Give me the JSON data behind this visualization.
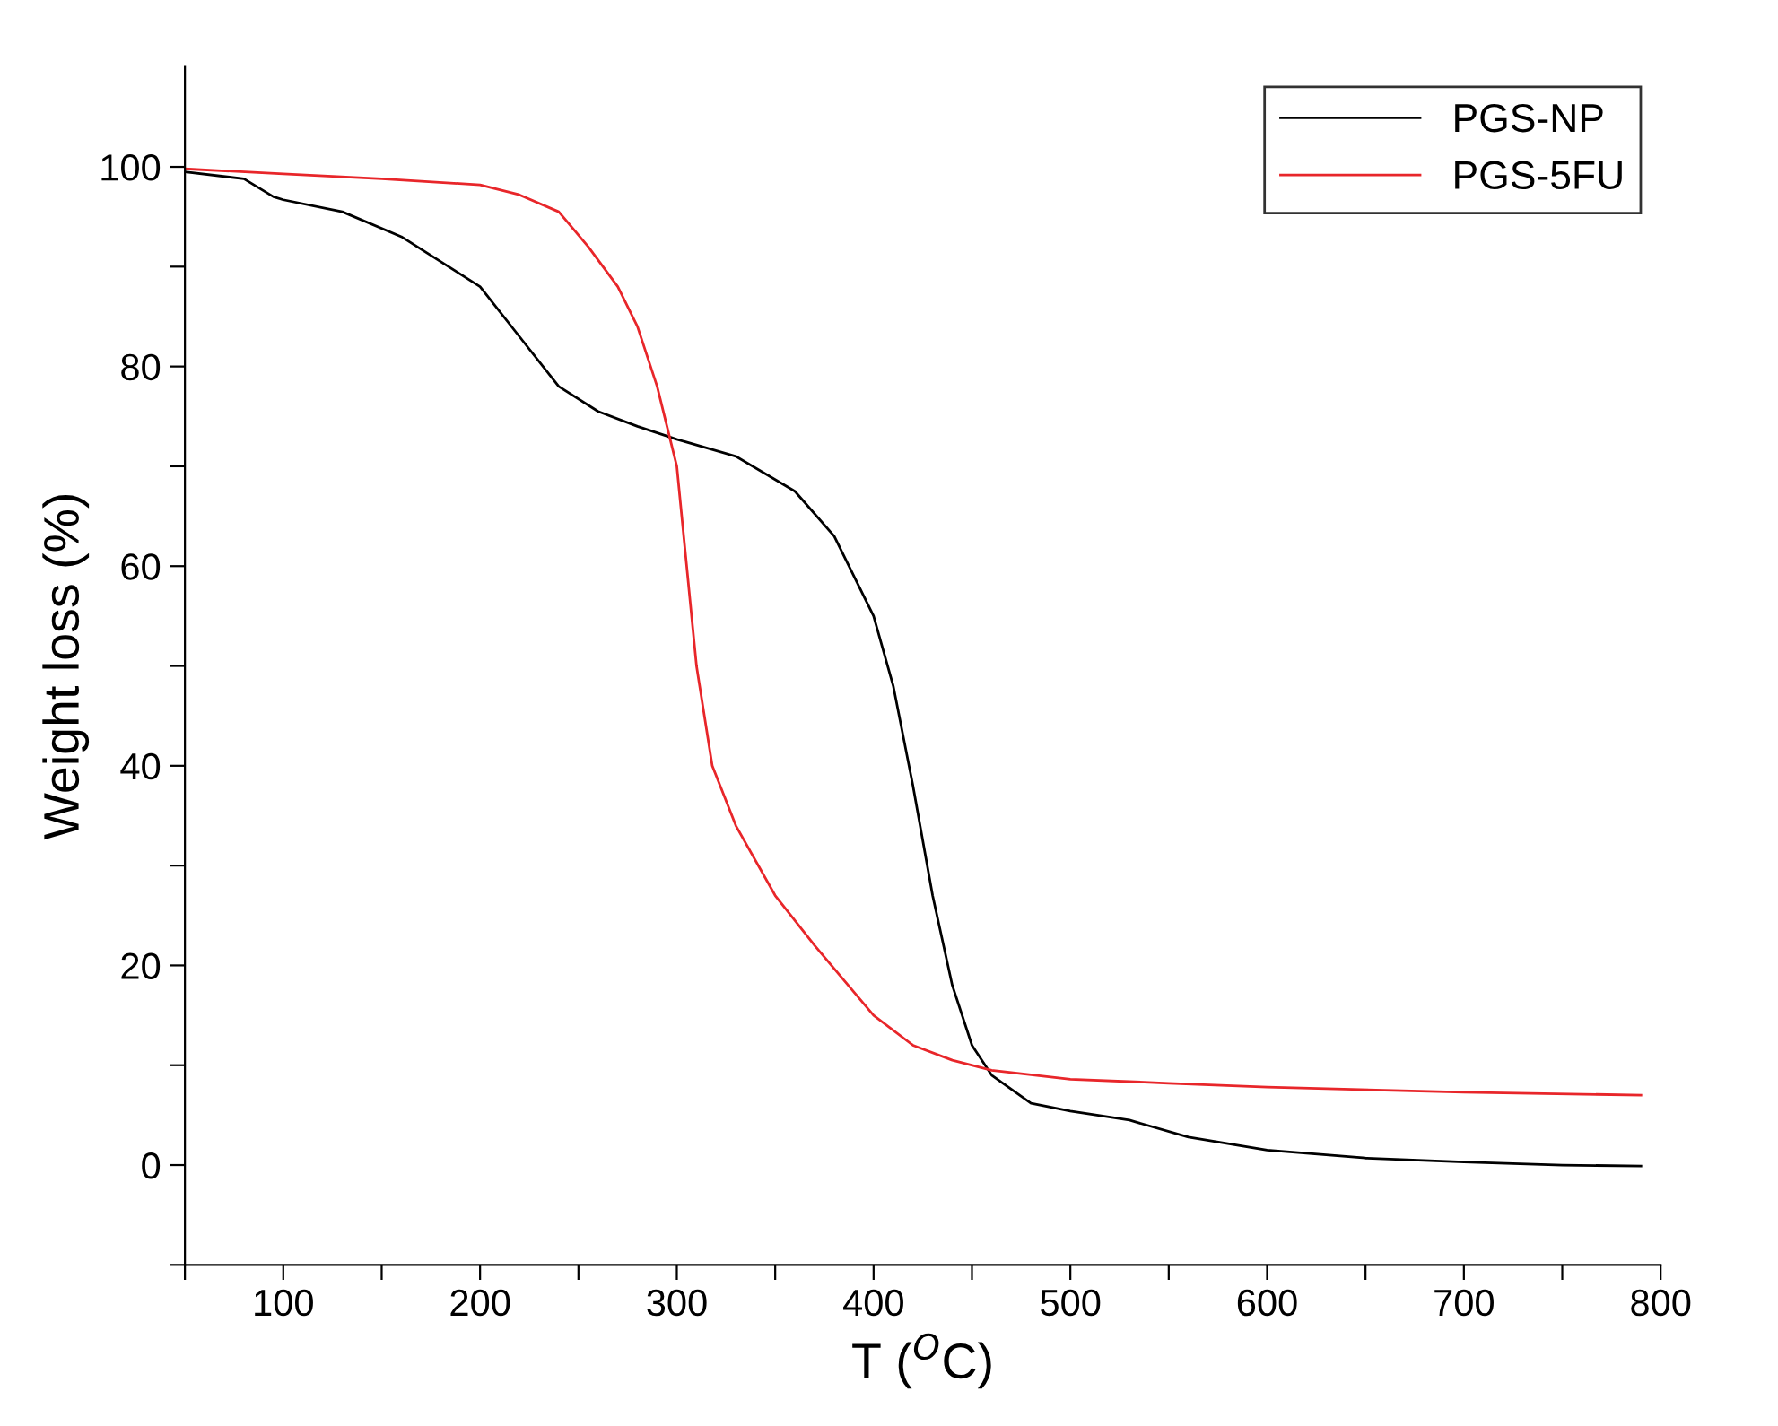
{
  "chart_data": {
    "type": "line",
    "xlabel": "T ($^{O}$C)",
    "ylabel": "Weight loss (%)",
    "xlim": [
      50,
      800
    ],
    "ylim": [
      -10,
      110
    ],
    "xticks": [
      {
        "value": 50,
        "label": null
      },
      100,
      {
        "value": 150,
        "label": null
      },
      200,
      {
        "value": 250,
        "label": null
      },
      300,
      {
        "value": 350,
        "label": null
      },
      400,
      {
        "value": 450,
        "label": null
      },
      500,
      {
        "value": 550,
        "label": null
      },
      600,
      {
        "value": 650,
        "label": null
      },
      700,
      {
        "value": 750,
        "label": null
      },
      800
    ],
    "yticks": [
      {
        "value": -10,
        "label": null
      },
      0,
      {
        "value": 10,
        "label": null
      },
      20,
      {
        "value": 30,
        "label": null
      },
      40,
      {
        "value": 50,
        "label": null
      },
      60,
      {
        "value": 70,
        "label": null
      },
      80,
      {
        "value": 90,
        "label": null
      },
      100
    ],
    "grid": false,
    "legend": "top right",
    "marker": "none",
    "line_style": "solid",
    "series": [
      {
        "name": "PGS-NP",
        "color": "#000000",
        "x": [
          50,
          80,
          95,
          100,
          130,
          160,
          200,
          220,
          240,
          260,
          280,
          300,
          330,
          360,
          380,
          400,
          410,
          420,
          430,
          440,
          450,
          460,
          480,
          500,
          530,
          560,
          600,
          650,
          700,
          750,
          790
        ],
        "values": [
          99.5,
          98.8,
          97,
          96.7,
          95.5,
          93,
          88,
          83,
          78,
          75.5,
          74,
          72.7,
          71,
          67.5,
          63,
          55,
          48,
          38,
          27,
          18,
          12,
          9,
          6.2,
          5.4,
          4.5,
          2.8,
          1.5,
          0.7,
          0.3,
          0,
          -0.1
        ]
      },
      {
        "name": "PGS-5FU",
        "color": "#e8262a",
        "x": [
          50,
          100,
          150,
          200,
          220,
          240,
          255,
          270,
          280,
          290,
          300,
          305,
          310,
          318,
          330,
          350,
          370,
          400,
          420,
          440,
          460,
          500,
          550,
          600,
          700,
          790
        ],
        "values": [
          99.8,
          99.3,
          98.8,
          98.2,
          97.2,
          95.5,
          92,
          88,
          84,
          78,
          70,
          60,
          50,
          40,
          34,
          27,
          22,
          15,
          12,
          10.5,
          9.5,
          8.6,
          8.2,
          7.8,
          7.3,
          7
        ]
      }
    ]
  }
}
